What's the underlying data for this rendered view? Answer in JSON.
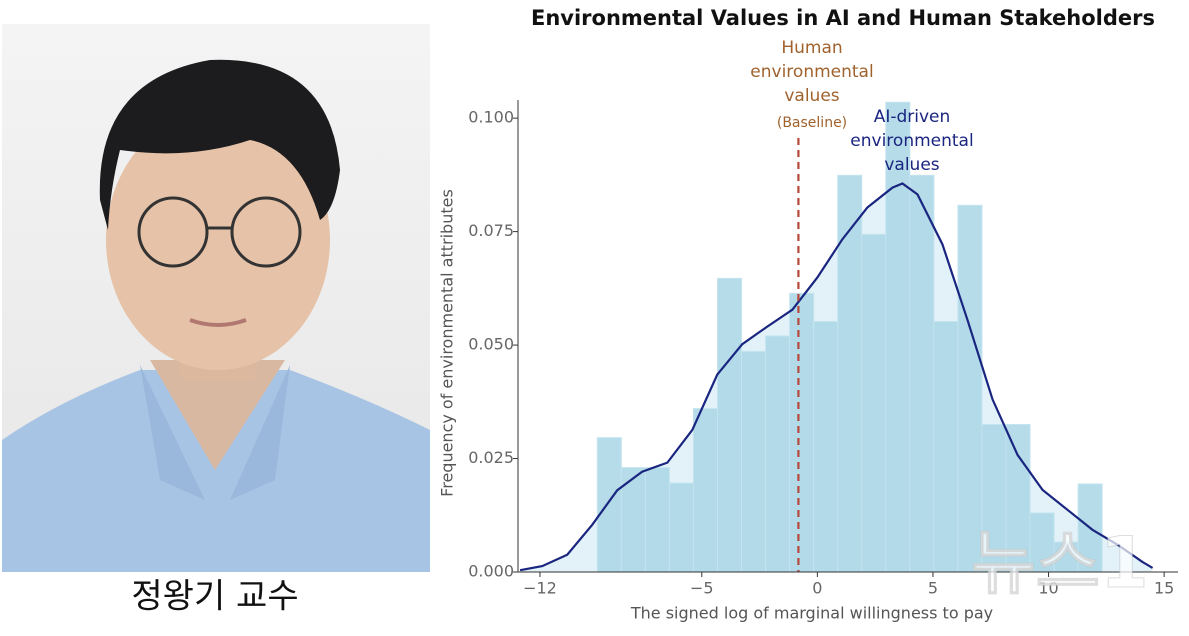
{
  "caption": "정왕기 교수",
  "watermark": "뉴스1",
  "chart_data": {
    "type": "histogram",
    "title": "Environmental Values in AI and Human Stakeholders",
    "x_label": "The signed log of marginal willingness to pay",
    "y_label": "Frequency of environmental attributes",
    "bins": [
      -9.52,
      -8.48,
      -7.44,
      -6.4,
      -5.36,
      -4.32,
      -3.28,
      -2.24,
      -1.2,
      -0.16,
      0.88,
      1.92,
      2.96,
      4.0,
      5.04,
      6.08,
      7.12,
      8.16,
      9.2,
      10.24,
      11.28,
      12.32
    ],
    "counts": [
      0.0296,
      0.023,
      0.023,
      0.0196,
      0.036,
      0.0647,
      0.0486,
      0.052,
      0.0614,
      0.0552,
      0.0874,
      0.0744,
      0.1035,
      0.0874,
      0.0552,
      0.0808,
      0.0325,
      0.0325,
      0.013,
      0.0066,
      0.0194
    ],
    "color": "#a9d6e6",
    "kde": {
      "x": [
        -12.86,
        -11.9,
        -10.82,
        -9.74,
        -8.66,
        -7.58,
        -6.49,
        -5.41,
        -4.33,
        -3.25,
        -2.16,
        -1.08,
        0,
        1.08,
        2.16,
        3.25,
        3.68,
        4.33,
        5.41,
        6.49,
        7.58,
        8.66,
        9.74,
        10.82,
        11.9,
        12.99,
        14.07,
        14.5
      ],
      "y": [
        0.0004,
        0.0013,
        0.0038,
        0.0104,
        0.018,
        0.0221,
        0.0241,
        0.0313,
        0.0435,
        0.0502,
        0.0541,
        0.0578,
        0.0649,
        0.0733,
        0.0803,
        0.0847,
        0.0856,
        0.0832,
        0.0722,
        0.0556,
        0.038,
        0.0258,
        0.0181,
        0.0137,
        0.0093,
        0.006,
        0.0022,
        0.0009
      ],
      "color": "#1a2580"
    },
    "baseline": {
      "value": -0.82,
      "color": "#b5483a"
    },
    "annotations": [
      {
        "lines": [
          "Human",
          "environmental",
          "values"
        ],
        "note": "(Baseline)",
        "color": "#a0622d"
      },
      {
        "lines": [
          "AI-driven",
          "environmental",
          "values"
        ],
        "color": "#1a2580"
      }
    ],
    "xlim": [
      -12.95,
      15.6
    ],
    "ylim": [
      0,
      0.104
    ],
    "xticks": [
      {
        "value": -12,
        "label": "−12"
      },
      {
        "value": -5,
        "label": "−5"
      },
      0,
      5,
      10,
      15
    ],
    "yticks": [
      {
        "value": 0,
        "label": "0.000"
      },
      {
        "value": 0.025,
        "label": "0.025"
      },
      {
        "value": 0.05,
        "label": "0.050"
      },
      {
        "value": 0.075,
        "label": "0.075"
      },
      {
        "value": 0.1,
        "label": "0.100"
      }
    ]
  }
}
